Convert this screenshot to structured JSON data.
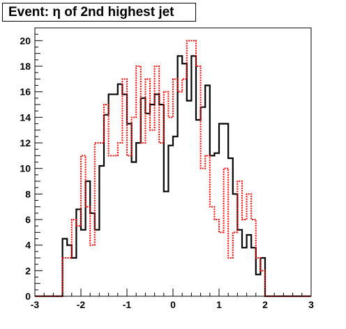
{
  "chart_data": {
    "type": "histogram",
    "title": "Event: η of 2nd highest jet",
    "xlabel": "",
    "ylabel": "",
    "xlim": [
      -3,
      3
    ],
    "ylim": [
      0,
      21
    ],
    "grid": false,
    "legend": "none",
    "x_ticks": [
      "-3",
      "-2",
      "-1",
      "0",
      "1",
      "2",
      "3"
    ],
    "y_ticks": [
      "0",
      "2",
      "4",
      "6",
      "8",
      "10",
      "12",
      "14",
      "16",
      "18",
      "20"
    ],
    "bin_edges_start": -3.0,
    "bin_width": 0.1,
    "series": [
      {
        "color": "#000000",
        "style": "solid",
        "values": [
          0,
          0,
          0,
          0,
          0,
          0,
          4.5,
          4.0,
          3.0,
          6.8,
          5.2,
          9.0,
          6.5,
          5.2,
          10.2,
          14.2,
          15.8,
          15.8,
          16.6,
          15.8,
          13.5,
          10.5,
          12.0,
          15.5,
          14.3,
          15.0,
          15.8,
          15.0,
          8.2,
          11.8,
          12.5,
          18.8,
          18.2,
          15.3,
          18.8,
          13.8,
          14.8,
          16.5,
          11.0,
          11.2,
          13.5,
          13.5,
          10.8,
          8.0,
          5.2,
          3.8,
          4.8,
          3.8,
          1.7,
          3.0,
          0,
          0,
          0,
          0,
          0,
          0,
          0,
          0,
          0,
          0
        ]
      },
      {
        "color": "#ff0000",
        "style": "dotted",
        "values": [
          0,
          0,
          0,
          0,
          0,
          0,
          3.0,
          3.0,
          6.0,
          5.5,
          11.0,
          7.0,
          4.0,
          12.0,
          12.0,
          15.0,
          11.0,
          11.0,
          12.0,
          17.0,
          11.0,
          14.0,
          18.0,
          12.0,
          17.0,
          13.0,
          18.0,
          12.0,
          16.0,
          14.0,
          17.0,
          16.0,
          17.0,
          20.0,
          20.0,
          18.0,
          10.0,
          11.0,
          7.0,
          6.0,
          5.0,
          10.0,
          3.0,
          5.0,
          9.0,
          6.0,
          8.0,
          6.0,
          3.0,
          2.0,
          0,
          0,
          0,
          0,
          0,
          0,
          0,
          0,
          0,
          0
        ]
      }
    ]
  }
}
